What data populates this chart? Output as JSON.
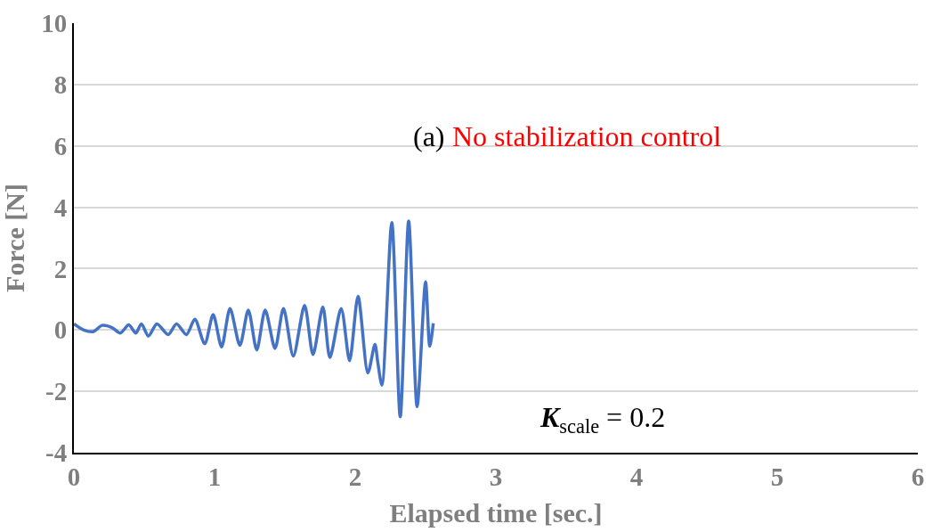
{
  "chart_data": {
    "type": "line",
    "xlabel": "Elapsed time [sec.]",
    "ylabel": "Force [N]",
    "annotations": [
      "(a)",
      "No stabilization control",
      "K$_{scale}$ = 0.2"
    ],
    "xlim": [
      0,
      6
    ],
    "xticks": [
      0,
      1,
      2,
      3,
      4,
      5,
      6
    ],
    "ylim": [
      -4,
      10
    ],
    "yticks": [
      -4,
      -2,
      0,
      2,
      4,
      6,
      8,
      10
    ],
    "grid": "y",
    "marker": "none",
    "line_style": "solid",
    "series": [
      {
        "color": "#4472c4",
        "x": [
          0,
          0.07,
          0.14,
          0.2,
          0.27,
          0.33,
          0.39,
          0.44,
          0.48,
          0.53,
          0.59,
          0.67,
          0.73,
          0.8,
          0.86,
          0.93,
          0.99,
          1.05,
          1.11,
          1.18,
          1.24,
          1.3,
          1.36,
          1.43,
          1.49,
          1.56,
          1.64,
          1.7,
          1.77,
          1.82,
          1.9,
          1.96,
          2.02,
          2.09,
          2.14,
          2.16,
          2.19,
          2.26,
          2.32,
          2.38,
          2.44,
          2.5,
          2.53,
          2.555
        ],
        "values": [
          0.2,
          0.0,
          -0.05,
          0.15,
          0.08,
          -0.1,
          0.17,
          -0.1,
          0.2,
          -0.2,
          0.2,
          -0.15,
          0.2,
          -0.15,
          0.35,
          -0.45,
          0.5,
          -0.55,
          0.7,
          -0.5,
          0.65,
          -0.65,
          0.65,
          -0.6,
          0.7,
          -0.85,
          0.8,
          -0.8,
          0.75,
          -0.9,
          0.7,
          -1.0,
          1.1,
          -1.4,
          -0.47,
          -1.04,
          -1.8,
          3.5,
          -2.83,
          3.55,
          -2.5,
          1.57,
          -0.53,
          0.22
        ]
      }
    ]
  }
}
